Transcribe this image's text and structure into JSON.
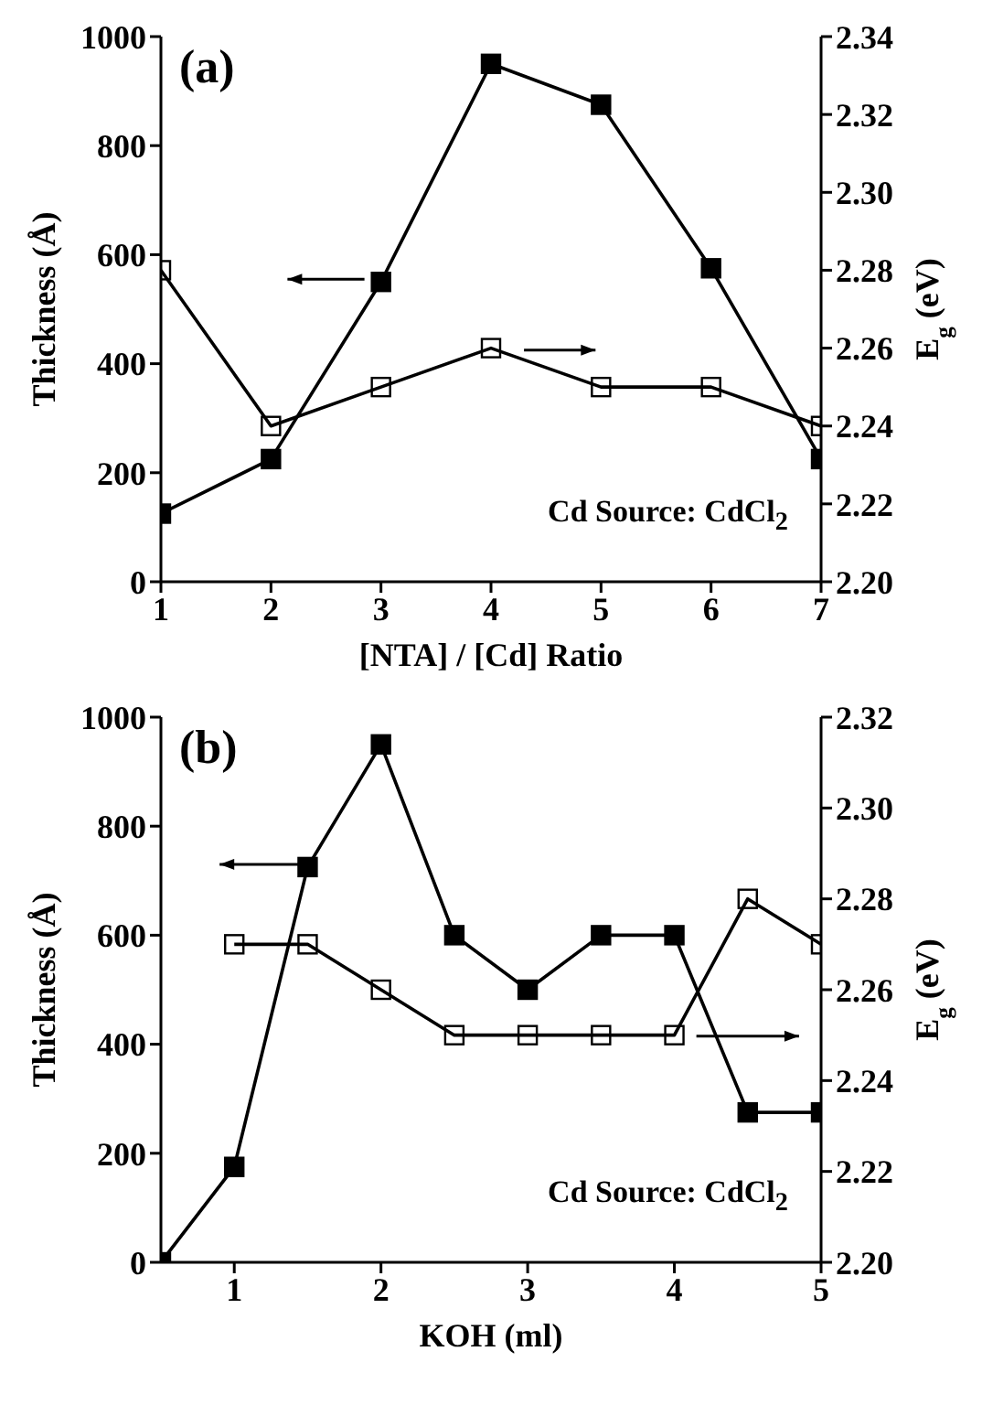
{
  "chart_data": [
    {
      "type": "line",
      "xlabel": "[NTA] / [Cd] Ratio",
      "ylabel": "Thickness (Å)",
      "y2label": "E$_{g}$ (eV)",
      "x": [
        1,
        2,
        3,
        4,
        5,
        6,
        7
      ],
      "xlim": [
        1,
        7
      ],
      "xticks": [
        1,
        2,
        3,
        4,
        5,
        6,
        7
      ],
      "ylim": [
        0,
        1000
      ],
      "yticks": [
        0,
        200,
        400,
        600,
        800,
        1000
      ],
      "y2lim": [
        2.2,
        2.34
      ],
      "y2ticks": [
        {
          "value": 2.2,
          "label": "2.20"
        },
        {
          "value": 2.22,
          "label": "2.22"
        },
        {
          "value": 2.24,
          "label": "2.24"
        },
        {
          "value": 2.26,
          "label": "2.26"
        },
        {
          "value": 2.28,
          "label": "2.28"
        },
        {
          "value": 2.3,
          "label": "2.30"
        },
        {
          "value": 2.32,
          "label": "2.32"
        },
        {
          "value": 2.34,
          "label": "2.34"
        }
      ],
      "marker": "square",
      "grid": false,
      "annotations": [
        "(a)",
        "Cd Source: CdCl$_{2}$"
      ],
      "series": [
        {
          "color": "#000000",
          "values": [
            125,
            225,
            550,
            950,
            875,
            575,
            225
          ]
        },
        {
          "color": "#000000",
          "axis": "y2",
          "values": [
            2.28,
            2.24,
            2.25,
            2.26,
            2.25,
            2.25,
            2.24
          ]
        }
      ]
    },
    {
      "type": "line",
      "xlabel": "KOH (ml)",
      "ylabel": "Thickness (Å)",
      "y2label": "E$_{g}$ (eV)",
      "xlim": [
        0.5,
        5
      ],
      "xticks": [
        1,
        2,
        3,
        4,
        5
      ],
      "ylim": [
        0,
        1000
      ],
      "yticks": [
        0,
        200,
        400,
        600,
        800,
        1000
      ],
      "y2lim": [
        2.2,
        2.32
      ],
      "y2ticks": [
        {
          "value": 2.2,
          "label": "2.20"
        },
        {
          "value": 2.22,
          "label": "2.22"
        },
        {
          "value": 2.24,
          "label": "2.24"
        },
        {
          "value": 2.26,
          "label": "2.26"
        },
        {
          "value": 2.28,
          "label": "2.28"
        },
        {
          "value": 2.3,
          "label": "2.30"
        },
        {
          "value": 2.32,
          "label": "2.32"
        }
      ],
      "marker": "square",
      "grid": false,
      "annotations": [
        "(b)",
        "Cd Source: CdCl$_{2}$"
      ],
      "series": [
        {
          "color": "#000000",
          "x": [
            0.5,
            1,
            1.5,
            2,
            2.5,
            3,
            3.5,
            4,
            4.5,
            5
          ],
          "values": [
            0,
            175,
            725,
            950,
            600,
            500,
            600,
            600,
            275,
            275
          ]
        },
        {
          "color": "#000000",
          "axis": "y2",
          "x": [
            1,
            1.5,
            2,
            2.5,
            3,
            3.5,
            4,
            4.5,
            5
          ],
          "values": [
            2.27,
            2.27,
            2.26,
            2.25,
            2.25,
            2.25,
            2.25,
            2.28,
            2.27
          ]
        }
      ]
    }
  ]
}
